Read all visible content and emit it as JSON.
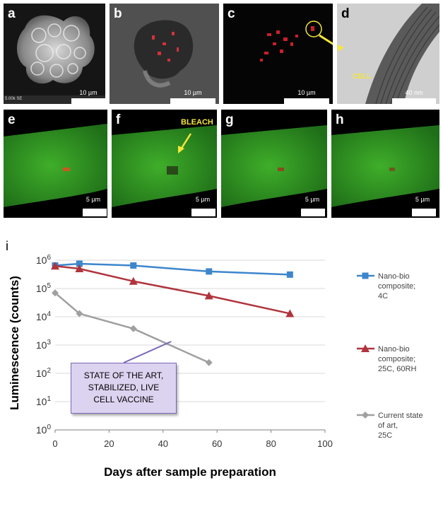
{
  "panels": [
    {
      "label": "a",
      "scale": "10 µm",
      "corner": "5.00k SE"
    },
    {
      "label": "b",
      "scale": "10 µm"
    },
    {
      "label": "c",
      "scale": "10 µm"
    },
    {
      "label": "d",
      "scale": "40 nm",
      "annotation": "CELL"
    },
    {
      "label": "e",
      "scale": "5 µm"
    },
    {
      "label": "f",
      "scale": "5 µm",
      "annotation": "BLEACH"
    },
    {
      "label": "g",
      "scale": "5 µm"
    },
    {
      "label": "h",
      "scale": "5 µm"
    }
  ],
  "colors": {
    "blue": "#3d86cc",
    "red": "#b0343d",
    "gray": "#a0a0a0",
    "callout_fill": "#dcd3f0",
    "callout_border": "#7a67b8"
  },
  "chart_label": "i",
  "chart_data": {
    "type": "line",
    "xlabel": "Days after sample preparation",
    "ylabel": "Luminescence (counts)",
    "xlim": [
      0,
      100
    ],
    "ylim_log10": [
      0,
      6
    ],
    "x_ticks": [
      "0",
      "20",
      "40",
      "60",
      "80",
      "100"
    ],
    "y_ticks": [
      {
        "base": "10",
        "exp": "0"
      },
      {
        "base": "10",
        "exp": "1"
      },
      {
        "base": "10",
        "exp": "2"
      },
      {
        "base": "10",
        "exp": "3"
      },
      {
        "base": "10",
        "exp": "4"
      },
      {
        "base": "10",
        "exp": "5"
      },
      {
        "base": "10",
        "exp": "6"
      }
    ],
    "series": [
      {
        "legend": [
          "Nano-bio",
          "composite;",
          "4C"
        ],
        "color": "#3d86cc",
        "marker": "square",
        "x": [
          0,
          9,
          29,
          57,
          87
        ],
        "y": [
          650000,
          750000,
          650000,
          400000,
          310000
        ]
      },
      {
        "legend": [
          "Nano-bio",
          "composite;",
          "25C, 60RH"
        ],
        "color": "#b0343d",
        "marker": "triangle",
        "x": [
          0,
          9,
          29,
          57,
          87
        ],
        "y": [
          620000,
          500000,
          180000,
          55000,
          13000
        ]
      },
      {
        "legend": [
          "Current state",
          "of art,",
          "25C"
        ],
        "color": "#a0a0a0",
        "marker": "diamond",
        "x": [
          0,
          9,
          29,
          57
        ],
        "y": [
          70000,
          13000,
          3800,
          240
        ]
      }
    ],
    "annotation": [
      "STATE OF THE ART,",
      "STABILIZED, LIVE",
      "CELL VACCINE"
    ]
  }
}
